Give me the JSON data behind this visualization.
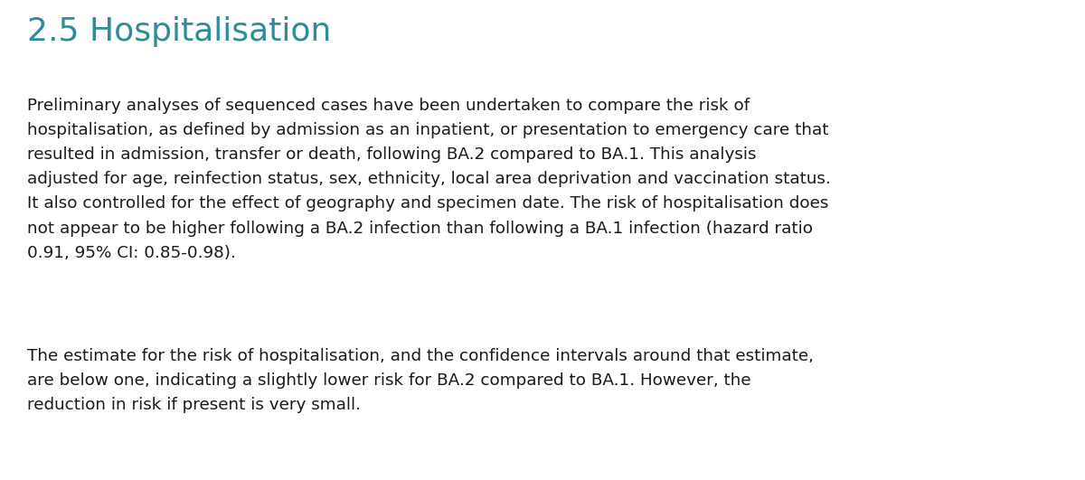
{
  "background_color": "#ffffff",
  "title": "2.5 Hospitalisation",
  "title_color": "#2e8b9a",
  "title_fontsize": 26,
  "body_color": "#1a1a1a",
  "body_fontsize": 13.2,
  "paragraph1": "Preliminary analyses of sequenced cases have been undertaken to compare the risk of\nhospitalisation, as defined by admission as an inpatient, or presentation to emergency care that\nresulted in admission, transfer or death, following BA.2 compared to BA.1. This analysis\nadjusted for age, reinfection status, sex, ethnicity, local area deprivation and vaccination status.\nIt also controlled for the effect of geography and specimen date. The risk of hospitalisation does\nnot appear to be higher following a BA.2 infection than following a BA.1 infection (hazard ratio\n0.91, 95% CI: 0.85-0.98).",
  "paragraph2": "The estimate for the risk of hospitalisation, and the confidence intervals around that estimate,\nare below one, indicating a slightly lower risk for BA.2 compared to BA.1. However, the\nreduction in risk if present is very small."
}
